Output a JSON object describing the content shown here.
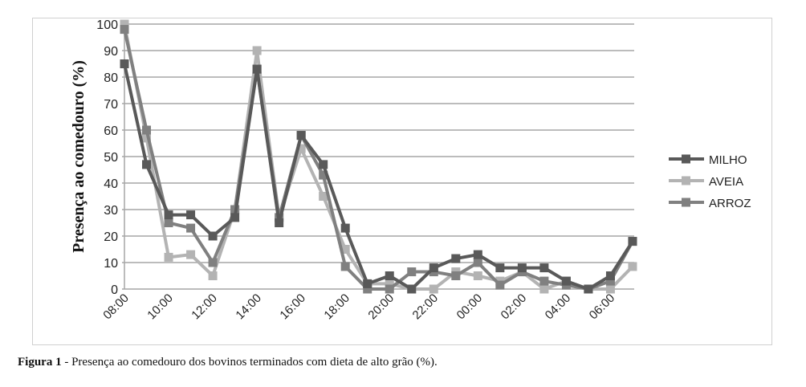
{
  "chart_data": {
    "type": "line",
    "title": "",
    "xlabel": "",
    "ylabel": "Presença ao comedouro (%)",
    "ylim": [
      0,
      100
    ],
    "yticks": [
      0,
      10,
      20,
      30,
      40,
      50,
      60,
      70,
      80,
      90,
      100
    ],
    "x": [
      "08:00",
      "09:00",
      "10:00",
      "11:00",
      "12:00",
      "13:00",
      "14:00",
      "15:00",
      "16:00",
      "17:00",
      "18:00",
      "19:00",
      "20:00",
      "21:00",
      "22:00",
      "23:00",
      "00:00",
      "01:00",
      "02:00",
      "03:00",
      "04:00",
      "05:00",
      "06:00",
      "07:00"
    ],
    "xtick_labels": [
      "08:00",
      "10:00",
      "12:00",
      "14:00",
      "16:00",
      "18:00",
      "20:00",
      "22:00",
      "00:00",
      "02:00",
      "04:00",
      "06:00"
    ],
    "grid": true,
    "legend_position": "right",
    "series": [
      {
        "name": "MILHO",
        "color": "#595959",
        "values": [
          85,
          47,
          28,
          28,
          20,
          27,
          83,
          25,
          58,
          47,
          23,
          2,
          5,
          0,
          8,
          11.5,
          13,
          8,
          8,
          8,
          3,
          0,
          5,
          18
        ]
      },
      {
        "name": "AVEIA",
        "color": "#b3b3b3",
        "values": [
          100,
          57,
          12,
          13,
          5,
          30,
          90,
          27,
          53,
          35,
          15,
          2,
          2,
          0,
          0,
          6.5,
          5,
          3,
          6.5,
          0,
          3,
          0,
          0,
          8.5
        ]
      },
      {
        "name": "ARROZ",
        "color": "#808080",
        "values": [
          98,
          60,
          25,
          23,
          10,
          30,
          83,
          27,
          58,
          43,
          8.5,
          0,
          0,
          6.5,
          6.5,
          5,
          10,
          1.5,
          6.5,
          3,
          1.5,
          0,
          3,
          18
        ]
      }
    ]
  },
  "caption": {
    "label": "Figura 1",
    "text": " - Presença ao comedouro dos bovinos terminados com dieta de alto grão (%)."
  }
}
